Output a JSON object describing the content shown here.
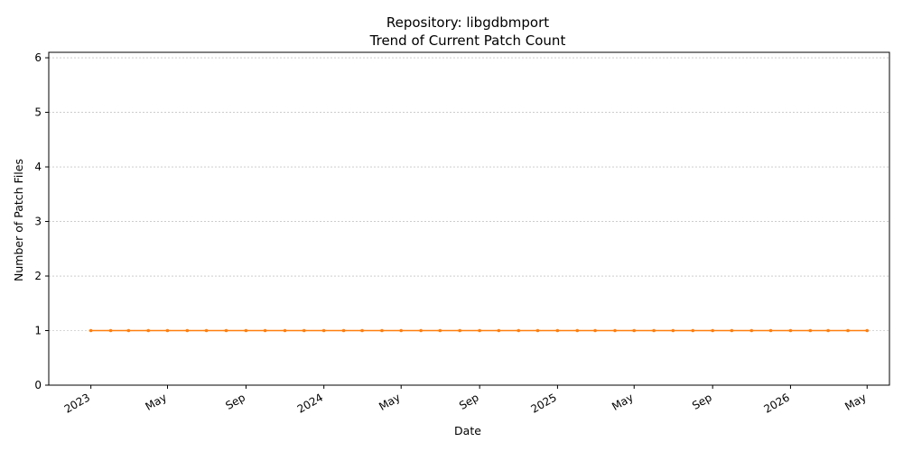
{
  "chart_data": {
    "type": "line",
    "title": "Repository: libgdbmport",
    "subtitle": "Trend of Current Patch Count",
    "xlabel": "Date",
    "ylabel": "Number of Patch Files",
    "ylim": [
      0,
      6.1
    ],
    "xlim": [
      "2022-10-27",
      "2026-06-05"
    ],
    "yticks": [
      0,
      1,
      2,
      3,
      4,
      5,
      6
    ],
    "xticks": [
      {
        "date": "2023-01-01",
        "label": "2023"
      },
      {
        "date": "2023-05-01",
        "label": "May"
      },
      {
        "date": "2023-09-01",
        "label": "Sep"
      },
      {
        "date": "2024-01-01",
        "label": "2024"
      },
      {
        "date": "2024-05-01",
        "label": "May"
      },
      {
        "date": "2024-09-01",
        "label": "Sep"
      },
      {
        "date": "2025-01-01",
        "label": "2025"
      },
      {
        "date": "2025-05-01",
        "label": "May"
      },
      {
        "date": "2025-09-01",
        "label": "Sep"
      },
      {
        "date": "2026-01-01",
        "label": "2026"
      },
      {
        "date": "2026-05-01",
        "label": "May"
      }
    ],
    "grid": "y",
    "series": [
      {
        "color": "#ff7f0e",
        "marker": "dot",
        "x": [
          "2023-01-01",
          "2023-02-01",
          "2023-03-01",
          "2023-04-01",
          "2023-05-01",
          "2023-06-01",
          "2023-07-01",
          "2023-08-01",
          "2023-09-01",
          "2023-10-01",
          "2023-11-01",
          "2023-12-01",
          "2024-01-01",
          "2024-02-01",
          "2024-03-01",
          "2024-04-01",
          "2024-05-01",
          "2024-06-01",
          "2024-07-01",
          "2024-08-01",
          "2024-09-01",
          "2024-10-01",
          "2024-11-01",
          "2024-12-01",
          "2025-01-01",
          "2025-02-01",
          "2025-03-01",
          "2025-04-01",
          "2025-05-01",
          "2025-06-01",
          "2025-07-01",
          "2025-08-01",
          "2025-09-01",
          "2025-10-01",
          "2025-11-01",
          "2025-12-01",
          "2026-01-01",
          "2026-02-01",
          "2026-03-01",
          "2026-04-01",
          "2026-05-01"
        ],
        "y": [
          1,
          1,
          1,
          1,
          1,
          1,
          1,
          1,
          1,
          1,
          1,
          1,
          1,
          1,
          1,
          1,
          1,
          1,
          1,
          1,
          1,
          1,
          1,
          1,
          1,
          1,
          1,
          1,
          1,
          1,
          1,
          1,
          1,
          1,
          1,
          1,
          1,
          1,
          1,
          1,
          1
        ]
      }
    ]
  }
}
